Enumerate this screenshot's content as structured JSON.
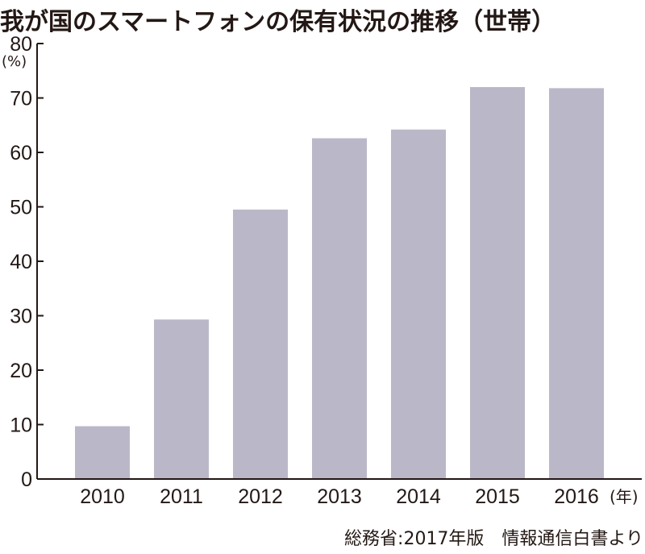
{
  "chart_data": {
    "type": "bar",
    "title": "我が国のスマートフォンの保有状況の推移（世帯）",
    "ylabel": "(%)",
    "xlabel": "(年)",
    "categories": [
      "2010",
      "2011",
      "2012",
      "2013",
      "2014",
      "2015",
      "2016"
    ],
    "values": [
      9.7,
      29.3,
      49.5,
      62.6,
      64.2,
      72.0,
      71.8
    ],
    "ylim": [
      0,
      80
    ],
    "yticks": [
      0,
      10,
      20,
      30,
      40,
      50,
      60,
      70,
      80
    ],
    "grid": false,
    "bar_color": "#bab8c8",
    "axis_color": "#231815",
    "source": "総務省:2017年版　情報通信白書より"
  }
}
